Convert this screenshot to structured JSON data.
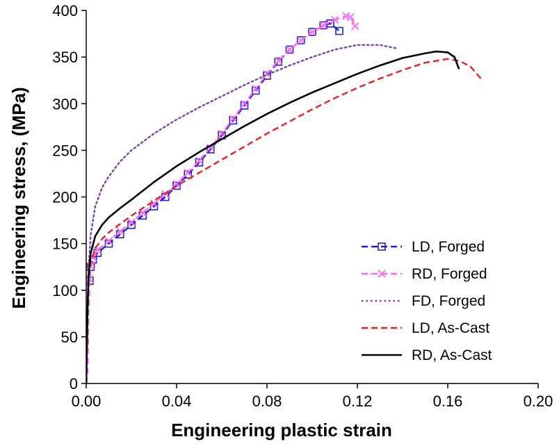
{
  "chart_data": {
    "type": "line",
    "title": "",
    "xlabel": "Engineering plastic strain",
    "ylabel": "Engineering stress, (MPa)",
    "xlim": [
      0,
      0.2
    ],
    "ylim": [
      0,
      400
    ],
    "xticks": [
      0,
      0.04,
      0.08,
      0.12,
      0.16,
      0.2
    ],
    "xtick_labels": [
      "0.00",
      "0.04",
      "0.08",
      "0.12",
      "0.16",
      "0.20"
    ],
    "yticks": [
      0,
      50,
      100,
      150,
      200,
      250,
      300,
      350,
      400
    ],
    "ytick_labels": [
      "0",
      "50",
      "100",
      "150",
      "200",
      "250",
      "300",
      "350",
      "400"
    ],
    "grid": false,
    "legend_position": "bottom-right",
    "series": [
      {
        "name": "LD, Forged",
        "color": "#1f1fd6",
        "style": "dashed",
        "marker": "square",
        "x": [
          0.0,
          0.0005,
          0.0008,
          0.001,
          0.0015,
          0.002,
          0.003,
          0.005,
          0.01,
          0.015,
          0.02,
          0.025,
          0.03,
          0.035,
          0.04,
          0.045,
          0.05,
          0.055,
          0.06,
          0.065,
          0.07,
          0.075,
          0.08,
          0.085,
          0.09,
          0.095,
          0.1,
          0.105,
          0.108,
          0.112
        ],
        "y": [
          0,
          10,
          40,
          80,
          110,
          125,
          133,
          140,
          150,
          160,
          170,
          180,
          190,
          200,
          212,
          224,
          237,
          251,
          266,
          282,
          298,
          314,
          330,
          345,
          358,
          368,
          377,
          384,
          386,
          378
        ]
      },
      {
        "name": "RD, Forged",
        "color": "#ff66ff",
        "style": "dashed",
        "marker": "x",
        "x": [
          0.0,
          0.0005,
          0.0008,
          0.001,
          0.0015,
          0.002,
          0.003,
          0.005,
          0.01,
          0.015,
          0.02,
          0.025,
          0.03,
          0.035,
          0.04,
          0.045,
          0.05,
          0.055,
          0.06,
          0.065,
          0.07,
          0.075,
          0.08,
          0.085,
          0.09,
          0.095,
          0.1,
          0.105,
          0.11,
          0.115,
          0.117,
          0.119
        ],
        "y": [
          0,
          12,
          45,
          85,
          112,
          126,
          135,
          143,
          153,
          163,
          173,
          183,
          193,
          203,
          214,
          226,
          239,
          253,
          268,
          284,
          300,
          316,
          332,
          346,
          358,
          368,
          377,
          384,
          390,
          394,
          393,
          383
        ]
      },
      {
        "name": "FD, Forged",
        "color": "#7a3fb0",
        "style": "dotted",
        "marker": "none",
        "x": [
          0.0,
          0.0005,
          0.001,
          0.002,
          0.004,
          0.007,
          0.01,
          0.015,
          0.02,
          0.03,
          0.04,
          0.05,
          0.06,
          0.07,
          0.08,
          0.09,
          0.1,
          0.11,
          0.12,
          0.13,
          0.138
        ],
        "y": [
          0,
          60,
          120,
          160,
          190,
          210,
          222,
          238,
          250,
          268,
          283,
          296,
          308,
          320,
          331,
          341,
          350,
          358,
          363,
          363,
          359
        ]
      },
      {
        "name": "LD, As-Cast",
        "color": "#e8231c",
        "style": "dashed",
        "marker": "none",
        "x": [
          0.0,
          0.0005,
          0.001,
          0.002,
          0.004,
          0.007,
          0.01,
          0.015,
          0.02,
          0.03,
          0.04,
          0.05,
          0.06,
          0.07,
          0.08,
          0.09,
          0.1,
          0.11,
          0.12,
          0.13,
          0.14,
          0.15,
          0.16,
          0.165,
          0.17,
          0.175
        ],
        "y": [
          0,
          60,
          110,
          130,
          145,
          155,
          162,
          171,
          180,
          196,
          212,
          226,
          240,
          254,
          268,
          281,
          294,
          306,
          317,
          327,
          336,
          344,
          348,
          346,
          340,
          326
        ]
      },
      {
        "name": "RD, As-Cast",
        "color": "#000000",
        "style": "solid",
        "marker": "none",
        "x": [
          0.0,
          0.0005,
          0.001,
          0.002,
          0.004,
          0.007,
          0.01,
          0.015,
          0.02,
          0.03,
          0.04,
          0.05,
          0.06,
          0.07,
          0.08,
          0.09,
          0.1,
          0.11,
          0.12,
          0.13,
          0.14,
          0.15,
          0.155,
          0.16,
          0.163,
          0.165
        ],
        "y": [
          0,
          70,
          115,
          140,
          158,
          170,
          178,
          188,
          197,
          216,
          233,
          248,
          262,
          276,
          289,
          301,
          312,
          322,
          332,
          341,
          349,
          354,
          356,
          355,
          350,
          337
        ]
      }
    ]
  }
}
